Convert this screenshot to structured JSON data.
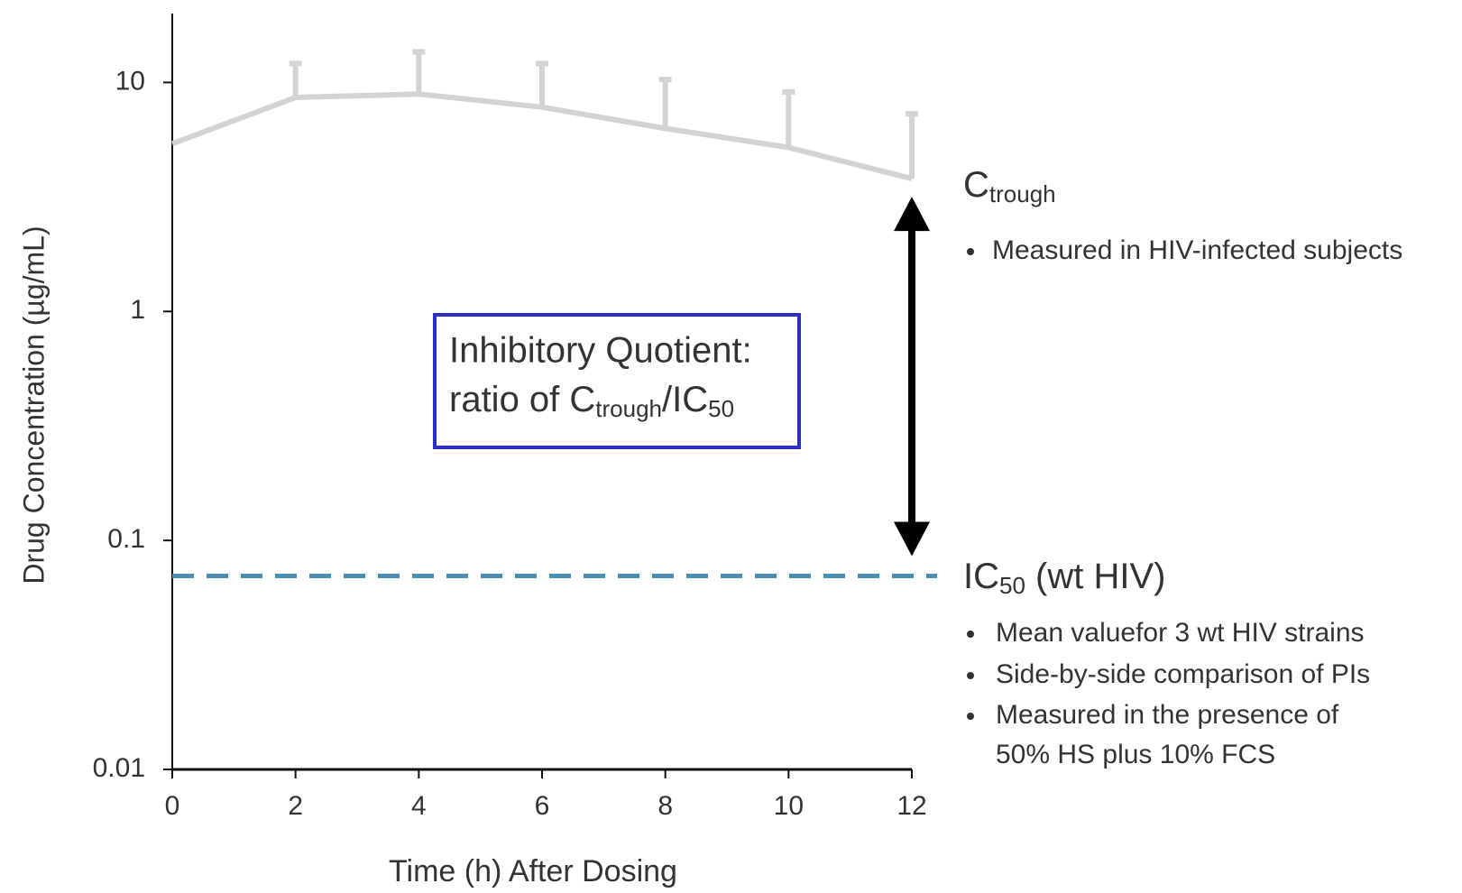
{
  "chart_data": {
    "type": "line",
    "x_label": "Time (h) After Dosing",
    "y_label": "Drug Concentration (µg/mL)",
    "x": [
      0,
      2,
      4,
      6,
      8,
      10,
      12
    ],
    "series": [
      {
        "color": "#d3d3d3",
        "values": [
          5.4,
          8.6,
          8.9,
          7.8,
          6.3,
          5.2,
          3.8
        ],
        "errors": [
          null,
          3.5,
          4.7,
          4.3,
          4.0,
          3.9,
          3.5
        ]
      }
    ],
    "xlim": [
      0,
      12
    ],
    "xticks": [
      0,
      2,
      4,
      6,
      8,
      10,
      12
    ],
    "ylim": [
      0.01,
      20
    ],
    "yticks": [
      0.01,
      0.1,
      1,
      10
    ],
    "log_y": true,
    "ic50": {
      "value": 0.07,
      "color": "#4a8db4"
    },
    "ctrough_label": [
      "C",
      "trough"
    ],
    "ctrough_bullets": [
      "Measured in HIV-infected subjects"
    ],
    "ic50_label": [
      "IC",
      "50",
      " (wt HIV)"
    ],
    "ic50_bullets": [
      "Mean valuefor 3 wt HIV strains",
      "Side-by-side comparison of PIs",
      "Measured in the presence of",
      "50% HS plus 10% FCS"
    ],
    "iq_box": {
      "line1": "Inhibitory Quotient:",
      "line2": [
        "ratio of C",
        "trough",
        "/IC",
        "50"
      ],
      "color": "#2b2fc4"
    }
  }
}
